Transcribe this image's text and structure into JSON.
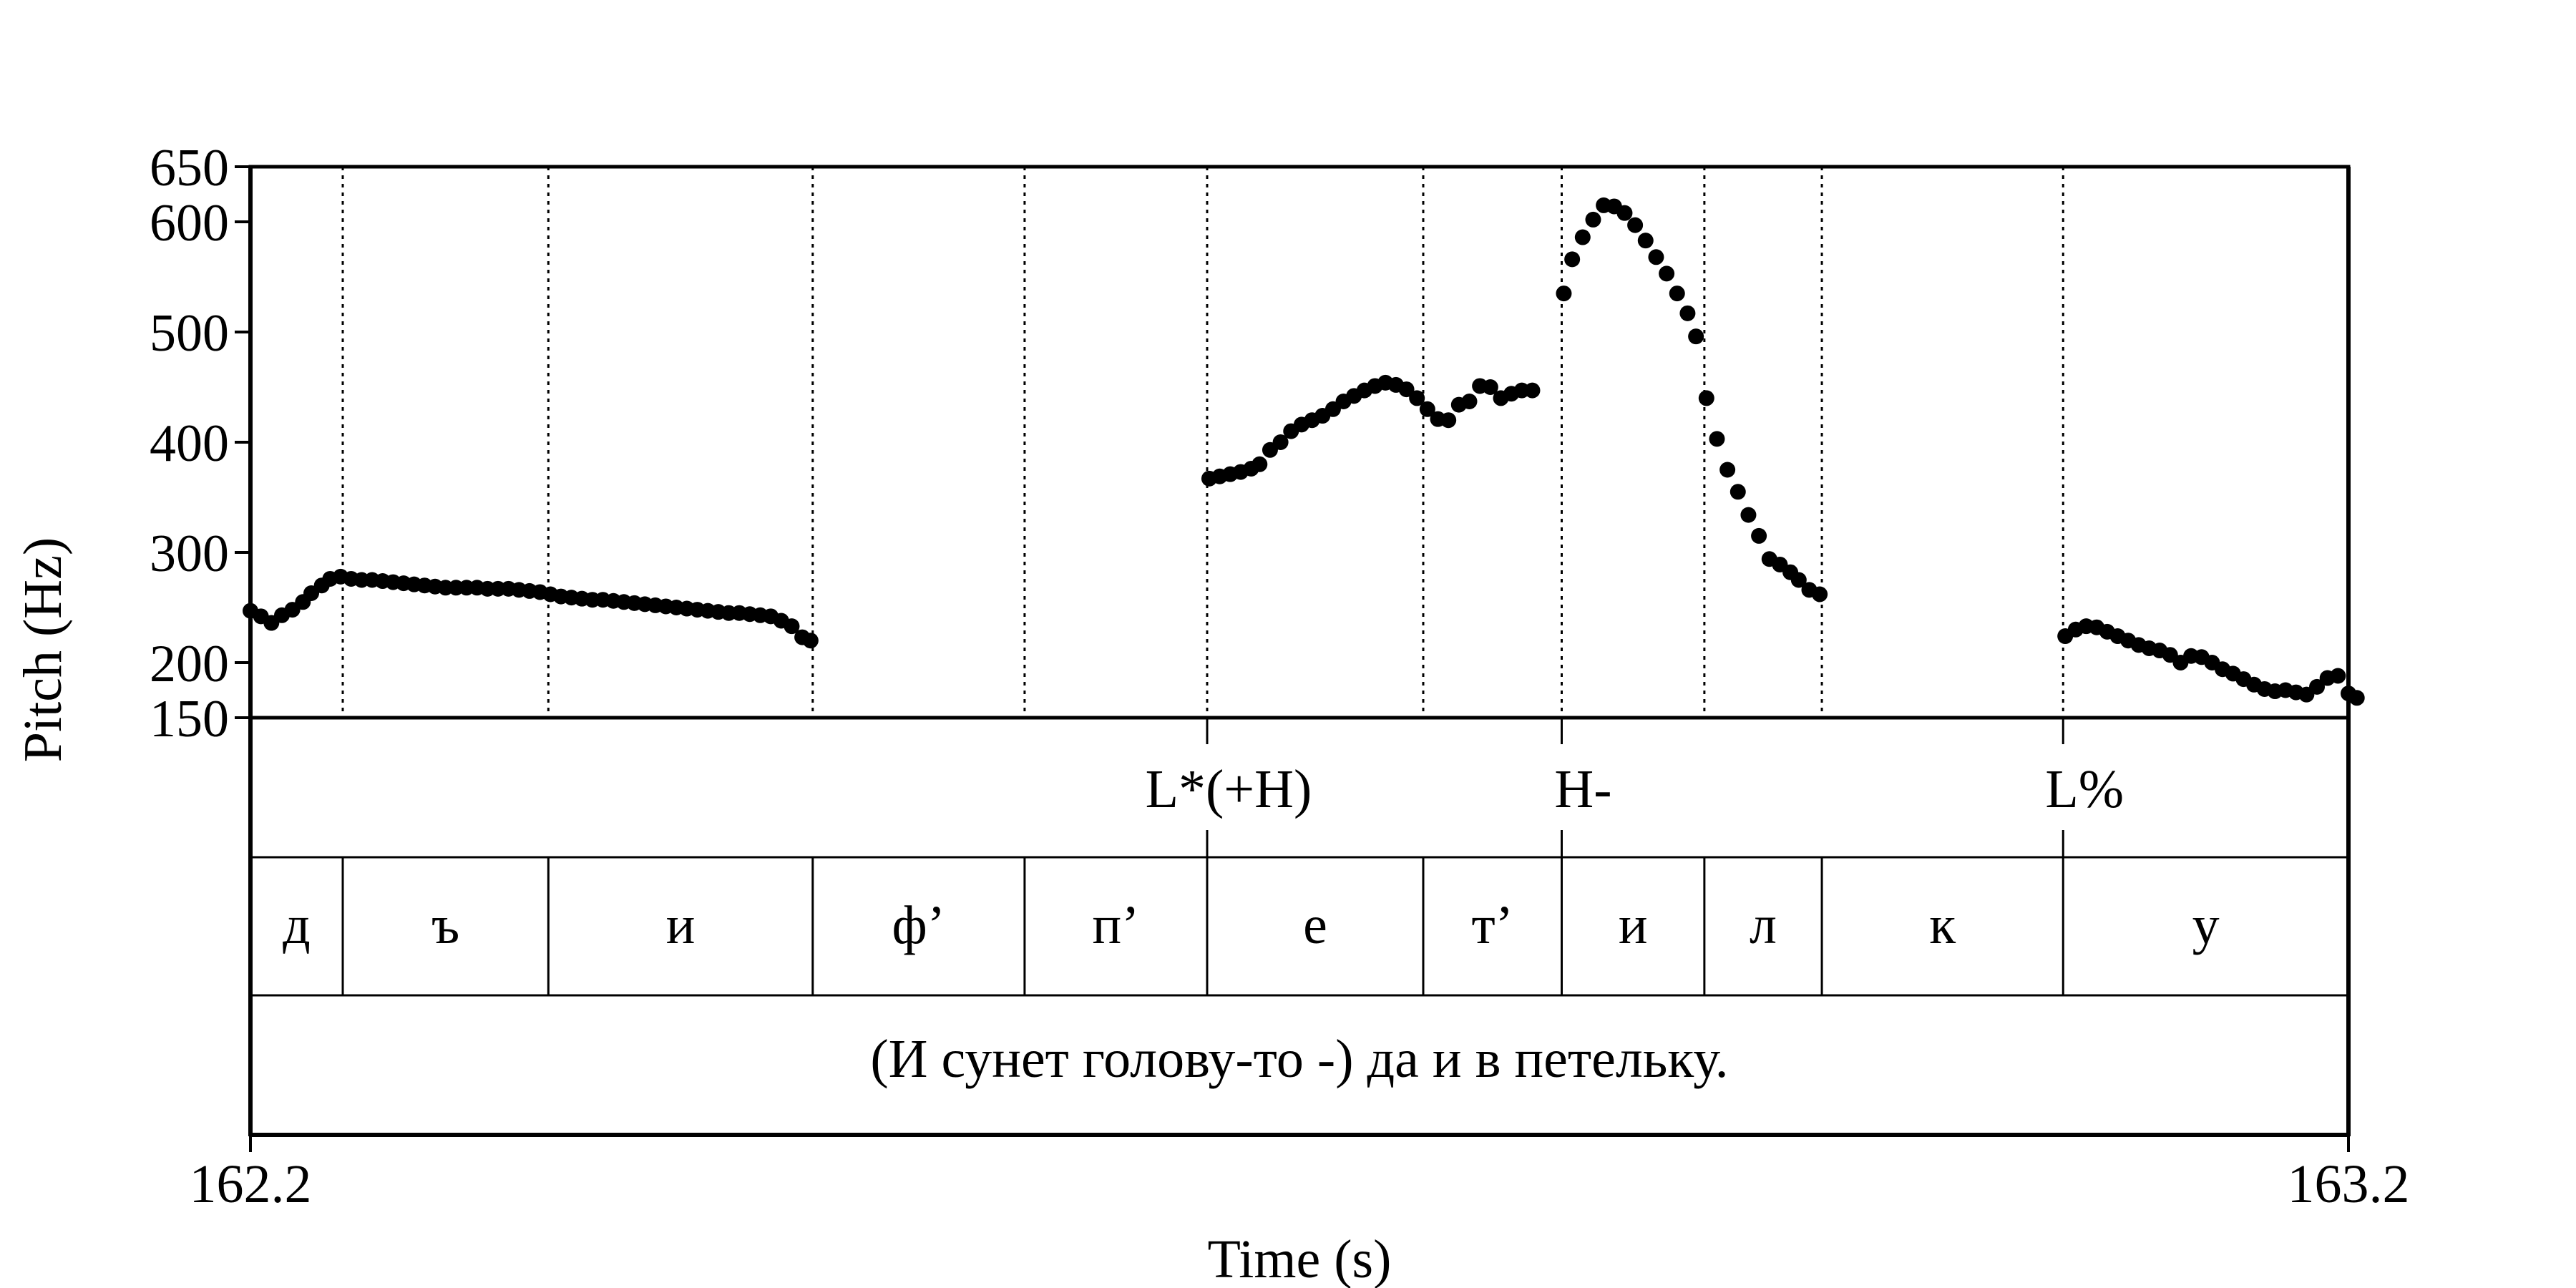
{
  "chart_data": {
    "type": "scatter",
    "title": "",
    "ylabel": "Pitch (Hz)",
    "xlabel": "Time (s)",
    "xlim": [
      162.2,
      163.2
    ],
    "ylim": [
      150,
      650
    ],
    "yticks": [
      650,
      600,
      500,
      400,
      300,
      200,
      150
    ],
    "xtick_labels": [
      "162.2",
      "163.2"
    ],
    "grid": false,
    "boundaries": [
      162.2,
      162.244,
      162.342,
      162.468,
      162.569,
      162.656,
      162.759,
      162.825,
      162.893,
      162.949,
      163.064,
      163.2
    ],
    "tones": [
      {
        "time": 162.656,
        "label": "L*(+H)"
      },
      {
        "time": 162.825,
        "label": "H-"
      },
      {
        "time": 163.064,
        "label": "L%"
      }
    ],
    "segments": [
      "д",
      "ъ",
      "и",
      "ф’",
      "п’",
      "е",
      "т’",
      "и",
      "л",
      "к",
      "у"
    ],
    "sentence": "(И сунет голову-то -) да и в петельку.",
    "series": [
      {
        "points": [
          [
            162.2,
            247
          ],
          [
            162.205,
            242
          ],
          [
            162.21,
            236
          ],
          [
            162.215,
            243
          ],
          [
            162.22,
            248
          ],
          [
            162.225,
            255
          ],
          [
            162.229,
            263
          ],
          [
            162.234,
            270
          ],
          [
            162.238,
            276
          ],
          [
            162.243,
            278
          ],
          [
            162.248,
            276
          ],
          [
            162.253,
            275
          ],
          [
            162.258,
            275
          ],
          [
            162.263,
            274
          ],
          [
            162.268,
            273
          ],
          [
            162.273,
            272
          ],
          [
            162.278,
            271
          ],
          [
            162.283,
            270
          ],
          [
            162.288,
            269
          ],
          [
            162.293,
            268
          ],
          [
            162.298,
            268
          ],
          [
            162.303,
            268
          ],
          [
            162.308,
            268
          ],
          [
            162.313,
            267
          ],
          [
            162.318,
            267
          ],
          [
            162.323,
            267
          ],
          [
            162.328,
            266
          ],
          [
            162.333,
            265
          ],
          [
            162.338,
            264
          ],
          [
            162.343,
            262
          ],
          [
            162.348,
            260
          ],
          [
            162.353,
            259
          ],
          [
            162.358,
            258
          ],
          [
            162.363,
            257
          ],
          [
            162.368,
            257
          ],
          [
            162.373,
            256
          ],
          [
            162.378,
            255
          ],
          [
            162.383,
            254
          ],
          [
            162.388,
            253
          ],
          [
            162.393,
            252
          ],
          [
            162.398,
            251
          ],
          [
            162.403,
            250
          ],
          [
            162.408,
            249
          ],
          [
            162.413,
            248
          ],
          [
            162.418,
            247
          ],
          [
            162.423,
            246
          ],
          [
            162.428,
            245
          ],
          [
            162.433,
            245
          ],
          [
            162.438,
            244
          ],
          [
            162.443,
            243
          ],
          [
            162.448,
            242
          ],
          [
            162.453,
            238
          ],
          [
            162.458,
            233
          ],
          [
            162.463,
            223
          ],
          [
            162.467,
            220
          ],
          [
            162.657,
            367
          ],
          [
            162.662,
            369
          ],
          [
            162.667,
            371
          ],
          [
            162.672,
            373
          ],
          [
            162.677,
            376
          ],
          [
            162.681,
            380
          ],
          [
            162.686,
            393
          ],
          [
            162.691,
            400
          ],
          [
            162.696,
            410
          ],
          [
            162.701,
            416
          ],
          [
            162.706,
            420
          ],
          [
            162.711,
            424
          ],
          [
            162.716,
            430
          ],
          [
            162.721,
            437
          ],
          [
            162.726,
            442
          ],
          [
            162.731,
            447
          ],
          [
            162.736,
            451
          ],
          [
            162.741,
            454
          ],
          [
            162.746,
            452
          ],
          [
            162.751,
            448
          ],
          [
            162.756,
            440
          ],
          [
            162.761,
            430
          ],
          [
            162.766,
            421
          ],
          [
            162.771,
            420
          ],
          [
            162.776,
            434
          ],
          [
            162.781,
            437
          ],
          [
            162.786,
            451
          ],
          [
            162.791,
            450
          ],
          [
            162.796,
            440
          ],
          [
            162.801,
            444
          ],
          [
            162.806,
            447
          ],
          [
            162.811,
            447
          ],
          [
            162.826,
            535
          ],
          [
            162.83,
            566
          ],
          [
            162.835,
            586
          ],
          [
            162.84,
            602
          ],
          [
            162.845,
            615
          ],
          [
            162.85,
            614
          ],
          [
            162.855,
            608
          ],
          [
            162.86,
            597
          ],
          [
            162.865,
            583
          ],
          [
            162.87,
            568
          ],
          [
            162.875,
            553
          ],
          [
            162.88,
            535
          ],
          [
            162.885,
            517
          ],
          [
            162.889,
            496
          ],
          [
            162.894,
            440
          ],
          [
            162.899,
            403
          ],
          [
            162.904,
            375
          ],
          [
            162.909,
            355
          ],
          [
            162.914,
            334
          ],
          [
            162.919,
            315
          ],
          [
            162.924,
            294
          ],
          [
            162.929,
            289
          ],
          [
            162.934,
            282
          ],
          [
            162.938,
            275
          ],
          [
            162.943,
            266
          ],
          [
            162.948,
            262
          ],
          [
            163.065,
            224
          ],
          [
            163.07,
            230
          ],
          [
            163.075,
            233
          ],
          [
            163.08,
            232
          ],
          [
            163.085,
            228
          ],
          [
            163.09,
            224
          ],
          [
            163.095,
            220
          ],
          [
            163.1,
            216
          ],
          [
            163.105,
            213
          ],
          [
            163.11,
            211
          ],
          [
            163.115,
            207
          ],
          [
            163.12,
            200
          ],
          [
            163.125,
            206
          ],
          [
            163.13,
            205
          ],
          [
            163.135,
            200
          ],
          [
            163.14,
            194
          ],
          [
            163.145,
            190
          ],
          [
            163.15,
            185
          ],
          [
            163.155,
            180
          ],
          [
            163.16,
            176
          ],
          [
            163.165,
            174
          ],
          [
            163.17,
            175
          ],
          [
            163.175,
            173
          ],
          [
            163.18,
            171
          ],
          [
            163.185,
            178
          ],
          [
            163.19,
            186
          ],
          [
            163.195,
            188
          ],
          [
            163.2,
            172
          ],
          [
            163.204,
            168
          ]
        ]
      }
    ]
  }
}
